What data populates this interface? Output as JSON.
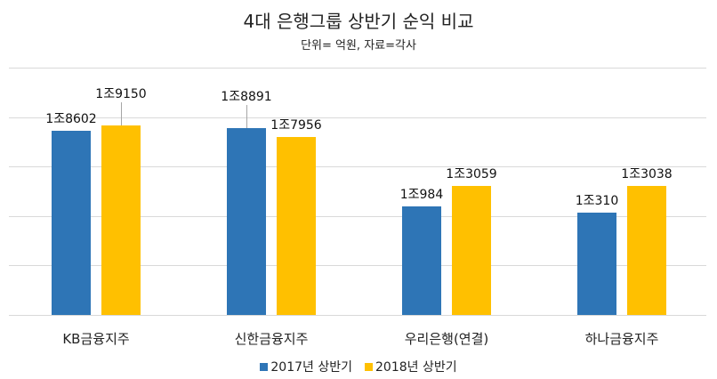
{
  "header": {
    "title": "4대 은행그룹 상반기 순익 비교",
    "subtitle": "단위= 억원, 자료=각사"
  },
  "colors": {
    "series_2017": "#2E75B6",
    "series_2018": "#FFC000",
    "gridline": "#D9D9D9",
    "leader": "#A6A6A6"
  },
  "categories": [
    "KB금융지주",
    "신한금융지주",
    "우리은행(연결)",
    "하나금융지주"
  ],
  "labels": {
    "s2017": [
      "1조8602",
      "1조8891",
      "1조984",
      "1조310"
    ],
    "s2018": [
      "1조9150",
      "1조7956",
      "1조3059",
      "1조3038"
    ]
  },
  "legend": [
    "2017년 상반기",
    "2018년 상반기"
  ],
  "chart_data": {
    "type": "bar",
    "title": "4대 은행그룹 상반기 순익 비교",
    "subtitle": "단위= 억원, 자료=각사",
    "categories": [
      "KB금융지주",
      "신한금융지주",
      "우리은행(연결)",
      "하나금융지주"
    ],
    "series": [
      {
        "name": "2017년 상반기",
        "values": [
          18602,
          18891,
          10984,
          10310
        ],
        "labels": [
          "1조8602",
          "1조8891",
          "1조984",
          "1조310"
        ]
      },
      {
        "name": "2018년 상반기",
        "values": [
          19150,
          17956,
          13059,
          13038
        ],
        "labels": [
          "1조9150",
          "1조7956",
          "1조3059",
          "1조3038"
        ]
      }
    ],
    "xlabel": "",
    "ylabel": "",
    "ylim": [
      0,
      25000
    ],
    "ytick_step": 5000,
    "y_axis_labels_visible": false,
    "grid": true,
    "legend_position": "bottom"
  }
}
